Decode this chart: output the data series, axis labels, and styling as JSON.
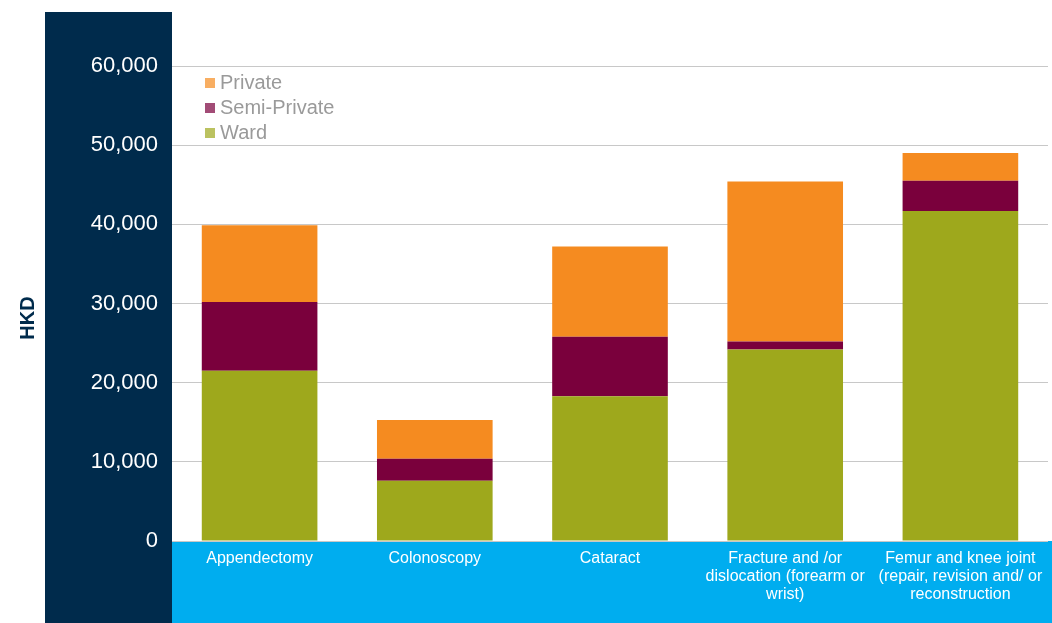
{
  "chart_data": {
    "type": "bar",
    "stacked": true,
    "ylabel": "HKD",
    "categories": [
      "Appendectomy",
      "Colonoscopy",
      "Cataract",
      "Fracture and /or dislocation (forearm or wrist)",
      "Femur and knee joint (repair, revision and/ or reconstruction"
    ],
    "series": [
      {
        "name": "Ward",
        "color": "#9ea81c",
        "values": [
          21500,
          7600,
          18300,
          24200,
          41700
        ]
      },
      {
        "name": "Semi-Private",
        "color": "#7a003c",
        "values": [
          8700,
          2800,
          7500,
          1000,
          3800
        ]
      },
      {
        "name": "Private",
        "color": "#f58b20",
        "values": [
          9700,
          4900,
          11400,
          20200,
          3500
        ]
      }
    ],
    "ylim": [
      0,
      60000
    ],
    "yticks": [
      0,
      {
        "value": 10000,
        "label": "10,000"
      },
      {
        "value": 20000,
        "label": "20,000"
      },
      {
        "value": 30000,
        "label": "30,000"
      },
      {
        "value": 40000,
        "label": "40,000"
      },
      {
        "value": 50000,
        "label": "50,000"
      },
      {
        "value": 60000,
        "label": "60,000"
      }
    ],
    "grid": "y",
    "legend": "top left"
  }
}
